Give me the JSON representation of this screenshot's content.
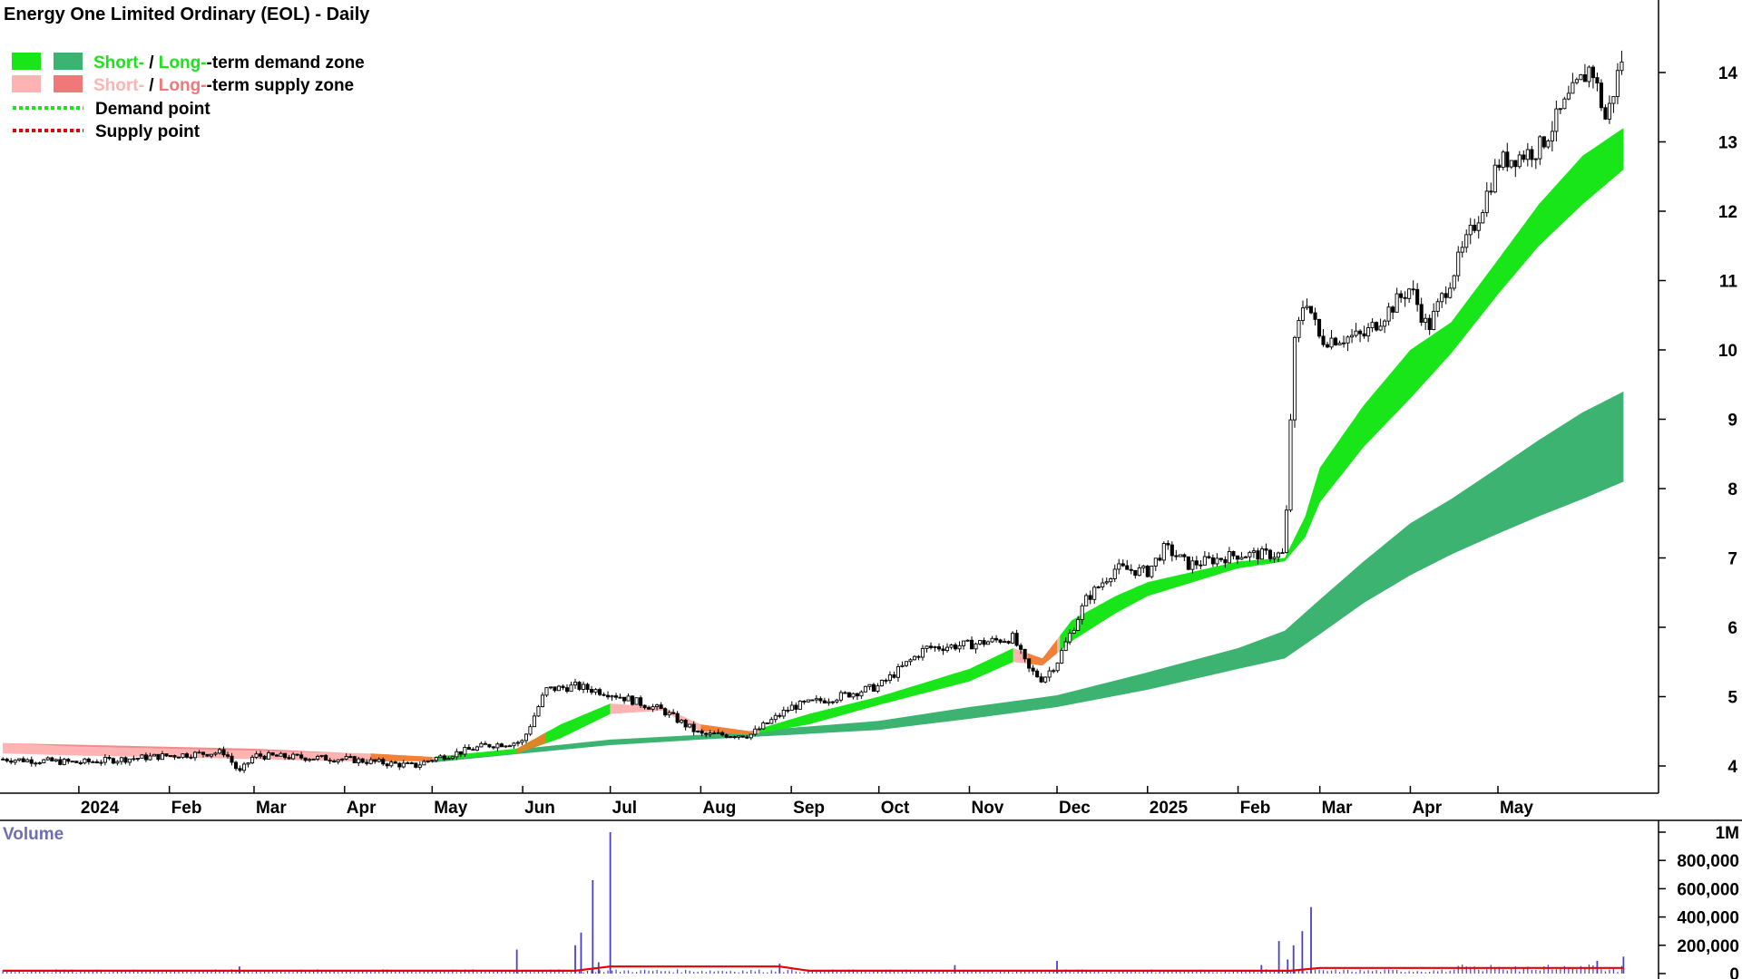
{
  "chart_data": {
    "type": "candlestick",
    "title": "Energy One Limited Ordinary (EOL) - Daily",
    "legend": [
      {
        "label_short": "Short-",
        "label_sep": " / ",
        "label_long": "Long-",
        "label_rest": "-term demand zone",
        "short_color": "#19e619",
        "long_color": "#3cb371"
      },
      {
        "label_short": "Short-",
        "label_sep": " / ",
        "label_long": "Long-",
        "label_rest": "-term supply zone",
        "short_color": "#ffb3b3",
        "long_color": "#f07878"
      },
      {
        "label": "Demand point",
        "color": "#19e619"
      },
      {
        "label": "Supply point",
        "color": "#e60000"
      }
    ],
    "x_tick_labels": [
      "2024",
      "Feb",
      "Mar",
      "Apr",
      "May",
      "Jun",
      "Jul",
      "Aug",
      "Sep",
      "Oct",
      "Nov",
      "Dec",
      "2025",
      "Feb",
      "Mar",
      "Apr",
      "May"
    ],
    "x_tick_days": [
      0,
      31,
      60,
      91,
      121,
      152,
      182,
      213,
      244,
      274,
      305,
      335,
      366,
      397,
      425,
      456,
      486
    ],
    "y_ticks": [
      4,
      5,
      6,
      7,
      8,
      9,
      10,
      11,
      12,
      13,
      14
    ],
    "ylim": [
      3.6,
      14.9
    ],
    "xlim_days": [
      -27,
      541
    ],
    "price_path": [
      [
        -26,
        4.1
      ],
      [
        0,
        4.05
      ],
      [
        31,
        4.15
      ],
      [
        50,
        4.2
      ],
      [
        55,
        3.9
      ],
      [
        60,
        4.15
      ],
      [
        91,
        4.1
      ],
      [
        115,
        4.0
      ],
      [
        121,
        4.1
      ],
      [
        140,
        4.3
      ],
      [
        152,
        4.35
      ],
      [
        160,
        5.1
      ],
      [
        170,
        5.15
      ],
      [
        182,
        5.05
      ],
      [
        200,
        4.8
      ],
      [
        213,
        4.45
      ],
      [
        230,
        4.45
      ],
      [
        244,
        4.85
      ],
      [
        260,
        5.0
      ],
      [
        274,
        5.15
      ],
      [
        290,
        5.7
      ],
      [
        305,
        5.75
      ],
      [
        320,
        5.85
      ],
      [
        325,
        5.4
      ],
      [
        330,
        5.25
      ],
      [
        335,
        5.5
      ],
      [
        345,
        6.4
      ],
      [
        355,
        6.85
      ],
      [
        366,
        6.8
      ],
      [
        372,
        7.15
      ],
      [
        380,
        6.9
      ],
      [
        397,
        7.05
      ],
      [
        413,
        7.05
      ],
      [
        416,
        10.0
      ],
      [
        420,
        10.8
      ],
      [
        425,
        10.15
      ],
      [
        440,
        10.2
      ],
      [
        456,
        10.9
      ],
      [
        462,
        10.3
      ],
      [
        470,
        11.05
      ],
      [
        480,
        12.0
      ],
      [
        486,
        12.7
      ],
      [
        500,
        12.9
      ],
      [
        510,
        13.6
      ],
      [
        518,
        14.1
      ],
      [
        523,
        13.3
      ],
      [
        529,
        14.3
      ]
    ],
    "short_term_zone": [
      [
        -26,
        4.33,
        4.18
      ],
      [
        0,
        4.28,
        4.15
      ],
      [
        60,
        4.22,
        4.1
      ],
      [
        100,
        4.18,
        4.06
      ],
      [
        121,
        4.13,
        4.08
      ],
      [
        150,
        4.25,
        4.18
      ],
      [
        165,
        4.6,
        4.4
      ],
      [
        182,
        4.9,
        4.75
      ],
      [
        200,
        4.85,
        4.8
      ],
      [
        213,
        4.6,
        4.5
      ],
      [
        230,
        4.5,
        4.45
      ],
      [
        250,
        4.75,
        4.6
      ],
      [
        274,
        5.0,
        4.88
      ],
      [
        305,
        5.4,
        5.22
      ],
      [
        320,
        5.7,
        5.5
      ],
      [
        330,
        5.55,
        5.45
      ],
      [
        340,
        6.1,
        5.8
      ],
      [
        355,
        6.45,
        6.2
      ],
      [
        366,
        6.65,
        6.45
      ],
      [
        397,
        6.95,
        6.85
      ],
      [
        413,
        7.0,
        6.95
      ],
      [
        420,
        7.6,
        7.3
      ],
      [
        425,
        8.3,
        7.8
      ],
      [
        440,
        9.2,
        8.6
      ],
      [
        456,
        10.0,
        9.3
      ],
      [
        470,
        10.4,
        9.95
      ],
      [
        486,
        11.3,
        10.8
      ],
      [
        500,
        12.1,
        11.5
      ],
      [
        515,
        12.8,
        12.1
      ],
      [
        529,
        13.2,
        12.6
      ]
    ],
    "long_term_zone": [
      [
        121,
        4.1,
        4.05
      ],
      [
        152,
        4.25,
        4.18
      ],
      [
        182,
        4.38,
        4.3
      ],
      [
        213,
        4.45,
        4.38
      ],
      [
        244,
        4.55,
        4.45
      ],
      [
        274,
        4.65,
        4.52
      ],
      [
        305,
        4.85,
        4.68
      ],
      [
        335,
        5.02,
        4.85
      ],
      [
        366,
        5.35,
        5.1
      ],
      [
        397,
        5.7,
        5.4
      ],
      [
        413,
        5.95,
        5.55
      ],
      [
        425,
        6.4,
        5.9
      ],
      [
        440,
        6.95,
        6.35
      ],
      [
        456,
        7.5,
        6.75
      ],
      [
        470,
        7.85,
        7.05
      ],
      [
        486,
        8.3,
        7.35
      ],
      [
        500,
        8.7,
        7.6
      ],
      [
        515,
        9.1,
        7.85
      ],
      [
        529,
        9.4,
        8.1
      ]
    ],
    "volume": {
      "title": "Volume",
      "y_tick_labels": [
        "1M",
        "800,000",
        "600,000",
        "400,000",
        "200,000",
        "0"
      ],
      "y_ticks": [
        1000000,
        800000,
        600000,
        400000,
        200000,
        0
      ],
      "ylim": [
        0,
        1000000
      ],
      "spikes": [
        [
          55,
          50000
        ],
        [
          150,
          170000
        ],
        [
          170,
          200000
        ],
        [
          172,
          290000
        ],
        [
          176,
          660000
        ],
        [
          178,
          80000
        ],
        [
          182,
          1000000
        ],
        [
          240,
          70000
        ],
        [
          300,
          60000
        ],
        [
          335,
          90000
        ],
        [
          405,
          60000
        ],
        [
          411,
          230000
        ],
        [
          414,
          100000
        ],
        [
          416,
          200000
        ],
        [
          419,
          300000
        ],
        [
          422,
          470000
        ],
        [
          520,
          90000
        ],
        [
          529,
          120000
        ]
      ],
      "average_line": [
        [
          -26,
          20000
        ],
        [
          170,
          20000
        ],
        [
          182,
          50000
        ],
        [
          240,
          50000
        ],
        [
          250,
          20000
        ],
        [
          415,
          20000
        ],
        [
          425,
          40000
        ],
        [
          529,
          40000
        ]
      ],
      "bar_color": "#4b3fc8",
      "avg_color": "#e60000"
    }
  }
}
